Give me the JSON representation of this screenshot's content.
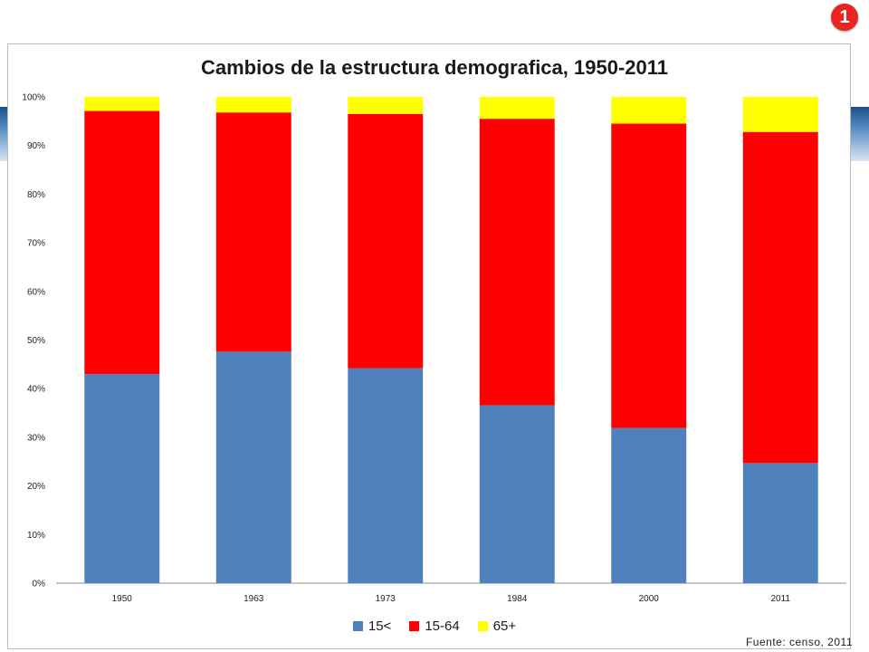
{
  "slide": {
    "number_badge": "1",
    "source_note": "Fuente: censo, 2011"
  },
  "chart_data": {
    "type": "bar",
    "stacked": true,
    "title": "Cambios de la estructura demografica, 1950-2011",
    "xlabel": "",
    "ylabel": "",
    "ylim": [
      0,
      100
    ],
    "y_ticks": [
      "0%",
      "10%",
      "20%",
      "30%",
      "40%",
      "50%",
      "60%",
      "70%",
      "80%",
      "90%",
      "100%"
    ],
    "categories": [
      "1950",
      "1963",
      "1973",
      "1984",
      "2000",
      "2011"
    ],
    "series": [
      {
        "name": "15<",
        "color": "#4f81bd",
        "values": [
          43.0,
          47.6,
          44.2,
          36.6,
          31.9,
          24.7
        ]
      },
      {
        "name": "15-64",
        "color": "#ff0000",
        "values": [
          54.1,
          49.2,
          52.3,
          58.9,
          62.6,
          68.1
        ]
      },
      {
        "name": "65+",
        "color": "#ffff00",
        "values": [
          2.9,
          3.2,
          3.5,
          4.5,
          5.5,
          7.2
        ]
      }
    ],
    "grid": false,
    "legend_position": "bottom"
  }
}
